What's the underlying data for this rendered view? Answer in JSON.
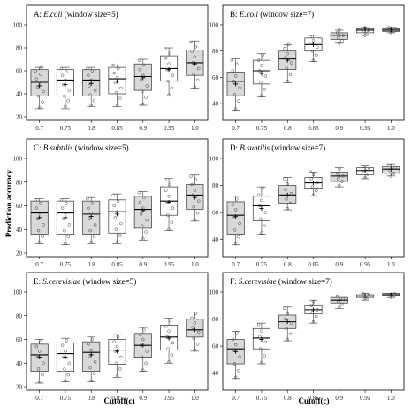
{
  "figure": {
    "ylabel": "Prediction accuracy",
    "xlabel": "Cutoff(c)"
  },
  "chart_data": [
    {
      "type": "box",
      "panel_label": "A:",
      "organism": "E.coli",
      "window_label": "(window size=5)",
      "categories": [
        "0.7",
        "0.75",
        "0.8",
        "0.85",
        "0.9",
        "0.95",
        "1.0"
      ],
      "ylim": [
        20,
        100
      ],
      "yticks": [
        20,
        40,
        60,
        80,
        100
      ],
      "boxes": [
        {
          "q1": 38,
          "median": 50,
          "q3": 61,
          "whisker_low": 27,
          "whisker_high": 63,
          "mean": 47,
          "shaded": true,
          "points": [
            28,
            33,
            38,
            42,
            46,
            50,
            53,
            57,
            60,
            63
          ]
        },
        {
          "q1": 38,
          "median": 52,
          "q3": 61,
          "whisker_low": 27,
          "whisker_high": 63,
          "mean": 48,
          "shaded": false,
          "points": [
            29,
            34,
            38,
            43,
            48,
            52,
            56,
            59,
            62
          ]
        },
        {
          "q1": 38,
          "median": 52,
          "q3": 61,
          "whisker_low": 29,
          "whisker_high": 63,
          "mean": 49,
          "shaded": true,
          "points": [
            30,
            34,
            39,
            43,
            47,
            52,
            56,
            60,
            62
          ]
        },
        {
          "q1": 40,
          "median": 53,
          "q3": 63,
          "whisker_low": 29,
          "whisker_high": 65,
          "mean": 51,
          "shaded": false,
          "points": [
            30,
            36,
            41,
            45,
            50,
            54,
            58,
            62,
            65
          ]
        },
        {
          "q1": 43,
          "median": 55,
          "q3": 66,
          "whisker_low": 30,
          "whisker_high": 70,
          "mean": 54,
          "shaded": true,
          "points": [
            31,
            37,
            42,
            47,
            52,
            56,
            61,
            65,
            69
          ]
        },
        {
          "q1": 51,
          "median": 62,
          "q3": 73,
          "whisker_low": 38,
          "whisker_high": 80,
          "mean": 61,
          "shaded": false,
          "points": [
            39,
            45,
            51,
            56,
            61,
            66,
            71,
            75,
            79
          ]
        },
        {
          "q1": 56,
          "median": 67,
          "q3": 78,
          "whisker_low": 45,
          "whisker_high": 86,
          "mean": 66,
          "shaded": true,
          "points": [
            46,
            52,
            57,
            62,
            67,
            72,
            77,
            81,
            85
          ]
        }
      ]
    },
    {
      "type": "box",
      "panel_label": "B:",
      "organism": "E.coli",
      "window_label": "(window size=7)",
      "categories": [
        "0.7",
        "0.75",
        "0.8",
        "0.85",
        "0.9",
        "0.95",
        "1.0"
      ],
      "ylim": [
        30,
        100
      ],
      "yticks": [
        40,
        60,
        80,
        100
      ],
      "boxes": [
        {
          "q1": 46,
          "median": 57,
          "q3": 64,
          "whisker_low": 35,
          "whisker_high": 74,
          "mean": 55,
          "shaded": true,
          "points": [
            36,
            42,
            47,
            52,
            57,
            61,
            65,
            70,
            73
          ]
        },
        {
          "q1": 55,
          "median": 65,
          "q3": 73,
          "whisker_low": 45,
          "whisker_high": 78,
          "mean": 63,
          "shaded": false,
          "points": [
            46,
            51,
            56,
            61,
            65,
            69,
            73,
            77
          ]
        },
        {
          "q1": 66,
          "median": 74,
          "q3": 80,
          "whisker_low": 56,
          "whisker_high": 85,
          "mean": 73,
          "shaded": true,
          "points": [
            57,
            62,
            67,
            71,
            75,
            78,
            82,
            85
          ]
        },
        {
          "q1": 80,
          "median": 85,
          "q3": 90,
          "whisker_low": 72,
          "whisker_high": 92,
          "mean": 85,
          "shaded": false,
          "points": [
            73,
            77,
            80,
            83,
            86,
            88,
            91
          ]
        },
        {
          "q1": 89,
          "median": 92,
          "q3": 94,
          "whisker_low": 86,
          "whisker_high": 96,
          "mean": 92,
          "shaded": true,
          "points": [
            86,
            88,
            90,
            92,
            94,
            96
          ]
        },
        {
          "q1": 94,
          "median": 96,
          "q3": 97,
          "whisker_low": 92,
          "whisker_high": 98,
          "mean": 96,
          "shaded": false,
          "points": [
            92,
            94,
            95,
            96,
            97,
            98
          ]
        },
        {
          "q1": 95,
          "median": 96,
          "q3": 97,
          "whisker_low": 94,
          "whisker_high": 98,
          "mean": 96,
          "shaded": true,
          "points": [
            94,
            95,
            96,
            97,
            98
          ]
        }
      ]
    },
    {
      "type": "box",
      "panel_label": "C:",
      "organism": "B.subtilis",
      "window_label": "(window size=5)",
      "categories": [
        "0.7",
        "0.75",
        "0.8",
        "0.85",
        "0.9",
        "0.95",
        "1.0"
      ],
      "ylim": [
        20,
        100
      ],
      "yticks": [
        20,
        40,
        60,
        80,
        100
      ],
      "boxes": [
        {
          "q1": 36,
          "median": 54,
          "q3": 64,
          "whisker_low": 28,
          "whisker_high": 66,
          "mean": 50,
          "shaded": true,
          "points": [
            29,
            34,
            39,
            44,
            49,
            54,
            58,
            62,
            65
          ]
        },
        {
          "q1": 36,
          "median": 54,
          "q3": 64,
          "whisker_low": 27,
          "whisker_high": 66,
          "mean": 50,
          "shaded": false,
          "points": [
            28,
            34,
            39,
            44,
            49,
            54,
            58,
            62,
            65
          ]
        },
        {
          "q1": 36,
          "median": 53,
          "q3": 64,
          "whisker_low": 28,
          "whisker_high": 67,
          "mean": 51,
          "shaded": true,
          "points": [
            29,
            34,
            39,
            44,
            49,
            54,
            58,
            62,
            66
          ]
        },
        {
          "q1": 37,
          "median": 55,
          "q3": 65,
          "whisker_low": 28,
          "whisker_high": 70,
          "mean": 53,
          "shaded": false,
          "points": [
            29,
            35,
            40,
            45,
            50,
            55,
            60,
            64,
            69
          ]
        },
        {
          "q1": 41,
          "median": 57,
          "q3": 68,
          "whisker_low": 31,
          "whisker_high": 72,
          "mean": 56,
          "shaded": true,
          "points": [
            32,
            38,
            43,
            48,
            53,
            58,
            63,
            67,
            71
          ]
        },
        {
          "q1": 52,
          "median": 64,
          "q3": 76,
          "whisker_low": 39,
          "whisker_high": 83,
          "mean": 63,
          "shaded": false,
          "points": [
            40,
            46,
            52,
            58,
            63,
            68,
            73,
            78,
            82
          ]
        },
        {
          "q1": 57,
          "median": 69,
          "q3": 78,
          "whisker_low": 47,
          "whisker_high": 86,
          "mean": 67,
          "shaded": true,
          "points": [
            48,
            54,
            59,
            64,
            69,
            73,
            78,
            82,
            85
          ]
        }
      ]
    },
    {
      "type": "box",
      "panel_label": "D:",
      "organism": "B.subtilis",
      "window_label": "(window size=7)",
      "categories": [
        "0.7",
        "0.75",
        "0.8",
        "0.85",
        "0.9",
        "0.95",
        "1.0"
      ],
      "ylim": [
        30,
        100
      ],
      "yticks": [
        40,
        60,
        80,
        100
      ],
      "boxes": [
        {
          "q1": 44,
          "median": 58,
          "q3": 68,
          "whisker_low": 36,
          "whisker_high": 72,
          "mean": 57,
          "shaded": true,
          "points": [
            37,
            42,
            47,
            52,
            57,
            62,
            66,
            70
          ]
        },
        {
          "q1": 54,
          "median": 65,
          "q3": 72,
          "whisker_low": 44,
          "whisker_high": 79,
          "mean": 63,
          "shaded": false,
          "points": [
            45,
            50,
            55,
            60,
            65,
            69,
            73,
            78
          ]
        },
        {
          "q1": 67,
          "median": 73,
          "q3": 80,
          "whisker_low": 62,
          "whisker_high": 86,
          "mean": 73,
          "shaded": true,
          "points": [
            63,
            67,
            70,
            74,
            77,
            81,
            85
          ]
        },
        {
          "q1": 78,
          "median": 82,
          "q3": 86,
          "whisker_low": 72,
          "whisker_high": 90,
          "mean": 82,
          "shaded": false,
          "points": [
            73,
            76,
            79,
            82,
            85,
            88,
            90
          ]
        },
        {
          "q1": 83,
          "median": 87,
          "q3": 90,
          "whisker_low": 79,
          "whisker_high": 93,
          "mean": 87,
          "shaded": true,
          "points": [
            80,
            83,
            85,
            87,
            89,
            92
          ]
        },
        {
          "q1": 88,
          "median": 91,
          "q3": 93,
          "whisker_low": 85,
          "whisker_high": 95,
          "mean": 91,
          "shaded": false,
          "points": [
            86,
            88,
            90,
            92,
            94
          ]
        },
        {
          "q1": 89,
          "median": 92,
          "q3": 94,
          "whisker_low": 87,
          "whisker_high": 96,
          "mean": 92,
          "shaded": true,
          "points": [
            87,
            89,
            91,
            93,
            95
          ]
        }
      ]
    },
    {
      "type": "box",
      "panel_label": "E:",
      "organism": "S.cerevisiae",
      "window_label": "(window size=5)",
      "categories": [
        "0.7",
        "0.75",
        "0.8",
        "0.85",
        "0.9",
        "0.95",
        "1.0"
      ],
      "ylim": [
        20,
        100
      ],
      "yticks": [
        20,
        40,
        60,
        80,
        100
      ],
      "boxes": [
        {
          "q1": 33,
          "median": 47,
          "q3": 56,
          "whisker_low": 23,
          "whisker_high": 60,
          "mean": 45,
          "shaded": true,
          "points": [
            24,
            30,
            35,
            40,
            45,
            50,
            54,
            58
          ]
        },
        {
          "q1": 33,
          "median": 48,
          "q3": 57,
          "whisker_low": 24,
          "whisker_high": 61,
          "mean": 45,
          "shaded": false,
          "points": [
            25,
            30,
            35,
            40,
            45,
            50,
            55,
            59
          ]
        },
        {
          "q1": 33,
          "median": 49,
          "q3": 58,
          "whisker_low": 24,
          "whisker_high": 62,
          "mean": 47,
          "shaded": true,
          "points": [
            25,
            31,
            36,
            41,
            46,
            51,
            56,
            60
          ]
        },
        {
          "q1": 39,
          "median": 51,
          "q3": 60,
          "whisker_low": 28,
          "whisker_high": 64,
          "mean": 50,
          "shaded": false,
          "points": [
            29,
            35,
            40,
            45,
            50,
            54,
            58,
            62
          ]
        },
        {
          "q1": 45,
          "median": 55,
          "q3": 65,
          "whisker_low": 33,
          "whisker_high": 70,
          "mean": 55,
          "shaded": true,
          "points": [
            34,
            40,
            45,
            50,
            55,
            60,
            64,
            68
          ]
        },
        {
          "q1": 51,
          "median": 62,
          "q3": 72,
          "whisker_low": 40,
          "whisker_high": 78,
          "mean": 61,
          "shaded": false,
          "points": [
            41,
            47,
            52,
            57,
            62,
            67,
            71,
            76
          ]
        },
        {
          "q1": 62,
          "median": 68,
          "q3": 77,
          "whisker_low": 50,
          "whisker_high": 83,
          "mean": 68,
          "shaded": true,
          "points": [
            51,
            56,
            61,
            66,
            70,
            74,
            78,
            82
          ]
        }
      ]
    },
    {
      "type": "box",
      "panel_label": "F:",
      "organism": "S.cerevisiae",
      "window_label": "(window size=7)",
      "categories": [
        "0.7",
        "0.75",
        "0.8",
        "0.85",
        "0.9",
        "0.95",
        "1.0"
      ],
      "ylim": [
        30,
        100
      ],
      "yticks": [
        40,
        60,
        80,
        100
      ],
      "boxes": [
        {
          "q1": 47,
          "median": 58,
          "q3": 65,
          "whisker_low": 36,
          "whisker_high": 71,
          "mean": 56,
          "shaded": true,
          "points": [
            37,
            42,
            47,
            52,
            57,
            61,
            65,
            70
          ]
        },
        {
          "q1": 58,
          "median": 66,
          "q3": 73,
          "whisker_low": 47,
          "whisker_high": 77,
          "mean": 65,
          "shaded": false,
          "points": [
            48,
            53,
            58,
            63,
            67,
            71,
            76
          ]
        },
        {
          "q1": 73,
          "median": 78,
          "q3": 83,
          "whisker_low": 64,
          "whisker_high": 89,
          "mean": 78,
          "shaded": true,
          "points": [
            65,
            69,
            73,
            77,
            80,
            84,
            88
          ]
        },
        {
          "q1": 84,
          "median": 87,
          "q3": 90,
          "whisker_low": 77,
          "whisker_high": 94,
          "mean": 87,
          "shaded": false,
          "points": [
            78,
            82,
            85,
            87,
            90,
            93
          ]
        },
        {
          "q1": 92,
          "median": 94,
          "q3": 96,
          "whisker_low": 88,
          "whisker_high": 97,
          "mean": 94,
          "shaded": true,
          "points": [
            89,
            91,
            93,
            95,
            97
          ]
        },
        {
          "q1": 96,
          "median": 97,
          "q3": 98,
          "whisker_low": 94,
          "whisker_high": 99,
          "mean": 97,
          "shaded": false,
          "points": [
            95,
            96,
            97,
            98,
            99
          ]
        },
        {
          "q1": 97,
          "median": 98,
          "q3": 99,
          "whisker_low": 96,
          "whisker_high": 99,
          "mean": 98,
          "shaded": true,
          "points": [
            96,
            97,
            98,
            99
          ]
        }
      ]
    }
  ]
}
